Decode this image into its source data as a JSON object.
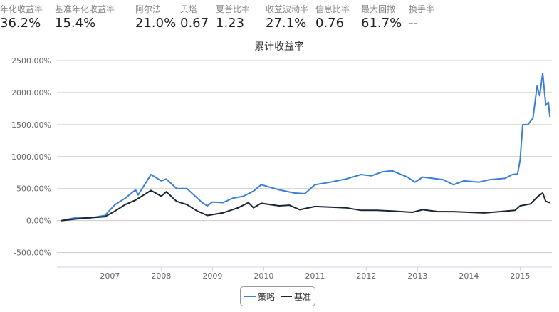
{
  "stats": [
    {
      "label": "年化收益率",
      "value": "36.2%"
    },
    {
      "label": "基准年化收益率",
      "value": "15.4%"
    },
    {
      "label": "阿尔法",
      "value": "21.0%"
    },
    {
      "label": "贝塔",
      "value": "0.67"
    },
    {
      "label": "夏普比率",
      "value": "1.23"
    },
    {
      "label": "收益波动率",
      "value": "27.1%"
    },
    {
      "label": "信息比率",
      "value": "0.76"
    },
    {
      "label": "最大回撤",
      "value": "61.7%"
    },
    {
      "label": "换手率",
      "value": "--"
    }
  ],
  "chart_data": {
    "type": "line",
    "title": "累计收益率",
    "xlabel": "",
    "ylabel": "",
    "ylim": [
      -727,
      2500
    ],
    "xlim": [
      2006.0,
      2015.65
    ],
    "yticks": [
      "2500.00%",
      "2000.00%",
      "1500.00%",
      "1000.00%",
      "500.00%",
      "0.00%",
      "-500.00%"
    ],
    "ytick_values": [
      2500,
      2000,
      1500,
      1000,
      500,
      0,
      -500
    ],
    "xticks": [
      "2007",
      "2008",
      "2009",
      "2010",
      "2011",
      "2012",
      "2013",
      "2014",
      "2015"
    ],
    "grid": true,
    "legend_position": "bottom",
    "series": [
      {
        "name": "策略",
        "color": "#3a7fd5",
        "x": [
          2006.05,
          2006.3,
          2006.6,
          2006.9,
          2007.1,
          2007.3,
          2007.5,
          2007.55,
          2007.8,
          2008.0,
          2008.1,
          2008.3,
          2008.5,
          2008.8,
          2008.9,
          2009.0,
          2009.2,
          2009.4,
          2009.6,
          2009.8,
          2009.95,
          2010.3,
          2010.6,
          2010.8,
          2011.0,
          2011.3,
          2011.6,
          2011.9,
          2012.1,
          2012.3,
          2012.5,
          2012.8,
          2012.95,
          2013.1,
          2013.5,
          2013.7,
          2013.9,
          2014.2,
          2014.4,
          2014.7,
          2014.85,
          2014.95,
          2015.0,
          2015.05,
          2015.15,
          2015.25,
          2015.33,
          2015.38,
          2015.44,
          2015.5,
          2015.55,
          2015.58
        ],
        "values": [
          0,
          40,
          40,
          80,
          250,
          350,
          480,
          400,
          720,
          620,
          650,
          500,
          500,
          280,
          230,
          290,
          280,
          350,
          380,
          460,
          560,
          480,
          430,
          420,
          560,
          600,
          650,
          720,
          700,
          760,
          780,
          680,
          600,
          680,
          640,
          560,
          620,
          600,
          640,
          660,
          720,
          730,
          950,
          1500,
          1500,
          1600,
          2100,
          1950,
          2300,
          1800,
          1850,
          1620
        ]
      },
      {
        "name": "基准",
        "color": "#1a2433",
        "x": [
          2006.05,
          2006.5,
          2006.9,
          2007.1,
          2007.3,
          2007.5,
          2007.8,
          2008.0,
          2008.1,
          2008.3,
          2008.5,
          2008.7,
          2008.9,
          2009.2,
          2009.5,
          2009.7,
          2009.8,
          2009.95,
          2010.3,
          2010.5,
          2010.7,
          2011.0,
          2011.3,
          2011.6,
          2011.9,
          2012.2,
          2012.5,
          2012.9,
          2013.1,
          2013.4,
          2013.7,
          2014.0,
          2014.3,
          2014.6,
          2014.9,
          2015.0,
          2015.2,
          2015.35,
          2015.44,
          2015.5,
          2015.58
        ],
        "values": [
          0,
          40,
          60,
          150,
          250,
          320,
          470,
          380,
          450,
          300,
          250,
          150,
          80,
          120,
          200,
          280,
          200,
          270,
          230,
          240,
          170,
          220,
          210,
          200,
          160,
          160,
          150,
          130,
          170,
          140,
          140,
          130,
          120,
          140,
          160,
          230,
          260,
          380,
          430,
          300,
          280
        ]
      }
    ]
  }
}
